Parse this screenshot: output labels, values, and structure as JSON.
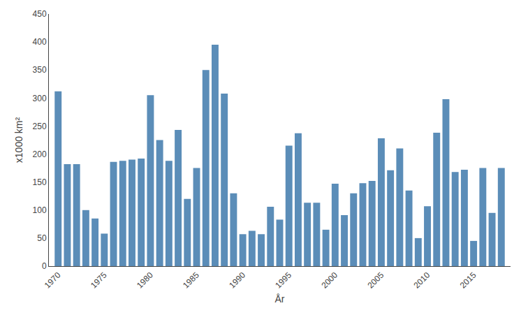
{
  "chart_data": {
    "type": "bar",
    "x": [
      1970,
      1971,
      1972,
      1973,
      1974,
      1975,
      1976,
      1977,
      1978,
      1979,
      1980,
      1981,
      1982,
      1983,
      1984,
      1985,
      1986,
      1987,
      1988,
      1989,
      1990,
      1991,
      1992,
      1993,
      1994,
      1995,
      1996,
      1997,
      1998,
      1999,
      2000,
      2001,
      2002,
      2003,
      2004,
      2005,
      2006,
      2007,
      2008,
      2009,
      2010,
      2011,
      2012,
      2013,
      2014,
      2015,
      2016,
      2017,
      2018
    ],
    "values": [
      312,
      182,
      182,
      100,
      85,
      58,
      186,
      188,
      190,
      192,
      305,
      225,
      188,
      243,
      120,
      175,
      350,
      395,
      308,
      130,
      57,
      63,
      57,
      106,
      83,
      215,
      237,
      113,
      113,
      65,
      147,
      91,
      130,
      148,
      152,
      228,
      171,
      210,
      135,
      50,
      107,
      238,
      298,
      168,
      172,
      45,
      175,
      95,
      175
    ],
    "color": "#5B8DB8",
    "xlabel": "År",
    "ylabel": "x1000 km²",
    "xlim": [
      1969,
      2019
    ],
    "ylim": [
      0,
      450
    ],
    "xticks": [
      1970,
      1975,
      1980,
      1985,
      1990,
      1995,
      2000,
      2005,
      2010,
      2015
    ],
    "yticks": [
      0,
      50,
      100,
      150,
      200,
      250,
      300,
      350,
      400,
      450
    ],
    "grid": false
  }
}
